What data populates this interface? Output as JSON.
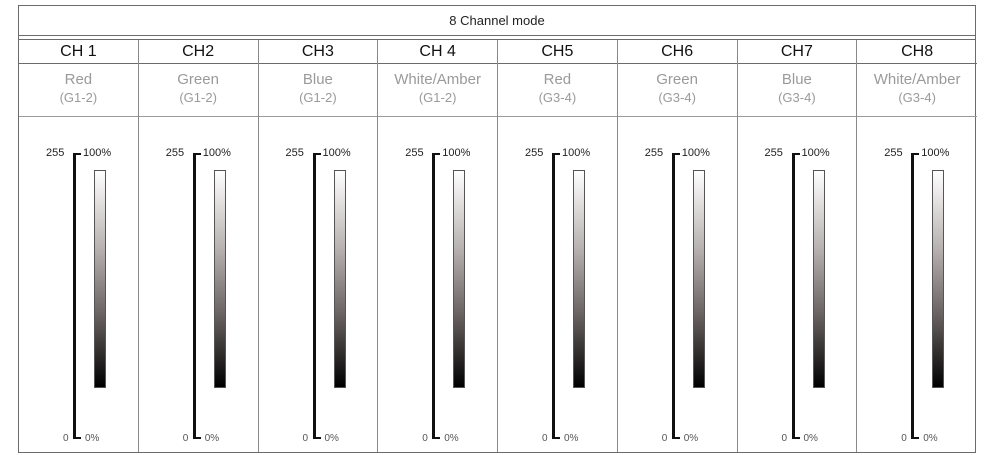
{
  "title": "8 Channel mode",
  "channels": [
    {
      "name": "CH 1",
      "color": "Red",
      "group": "(G1-2)"
    },
    {
      "name": "CH2",
      "color": "Green",
      "group": "(G1-2)"
    },
    {
      "name": "CH3",
      "color": "Blue",
      "group": "(G1-2)"
    },
    {
      "name": "CH 4",
      "color": "White/Amber",
      "group": "(G1-2)"
    },
    {
      "name": "CH5",
      "color": "Red",
      "group": "(G3-4)"
    },
    {
      "name": "CH6",
      "color": "Green",
      "group": "(G3-4)"
    },
    {
      "name": "CH7",
      "color": "Blue",
      "group": "(G3-4)"
    },
    {
      "name": "CH8",
      "color": "White/Amber",
      "group": "(G3-4)"
    }
  ],
  "scale": {
    "max_value": "255",
    "max_percent": "100%",
    "min_value": "0",
    "min_percent": "0%"
  }
}
